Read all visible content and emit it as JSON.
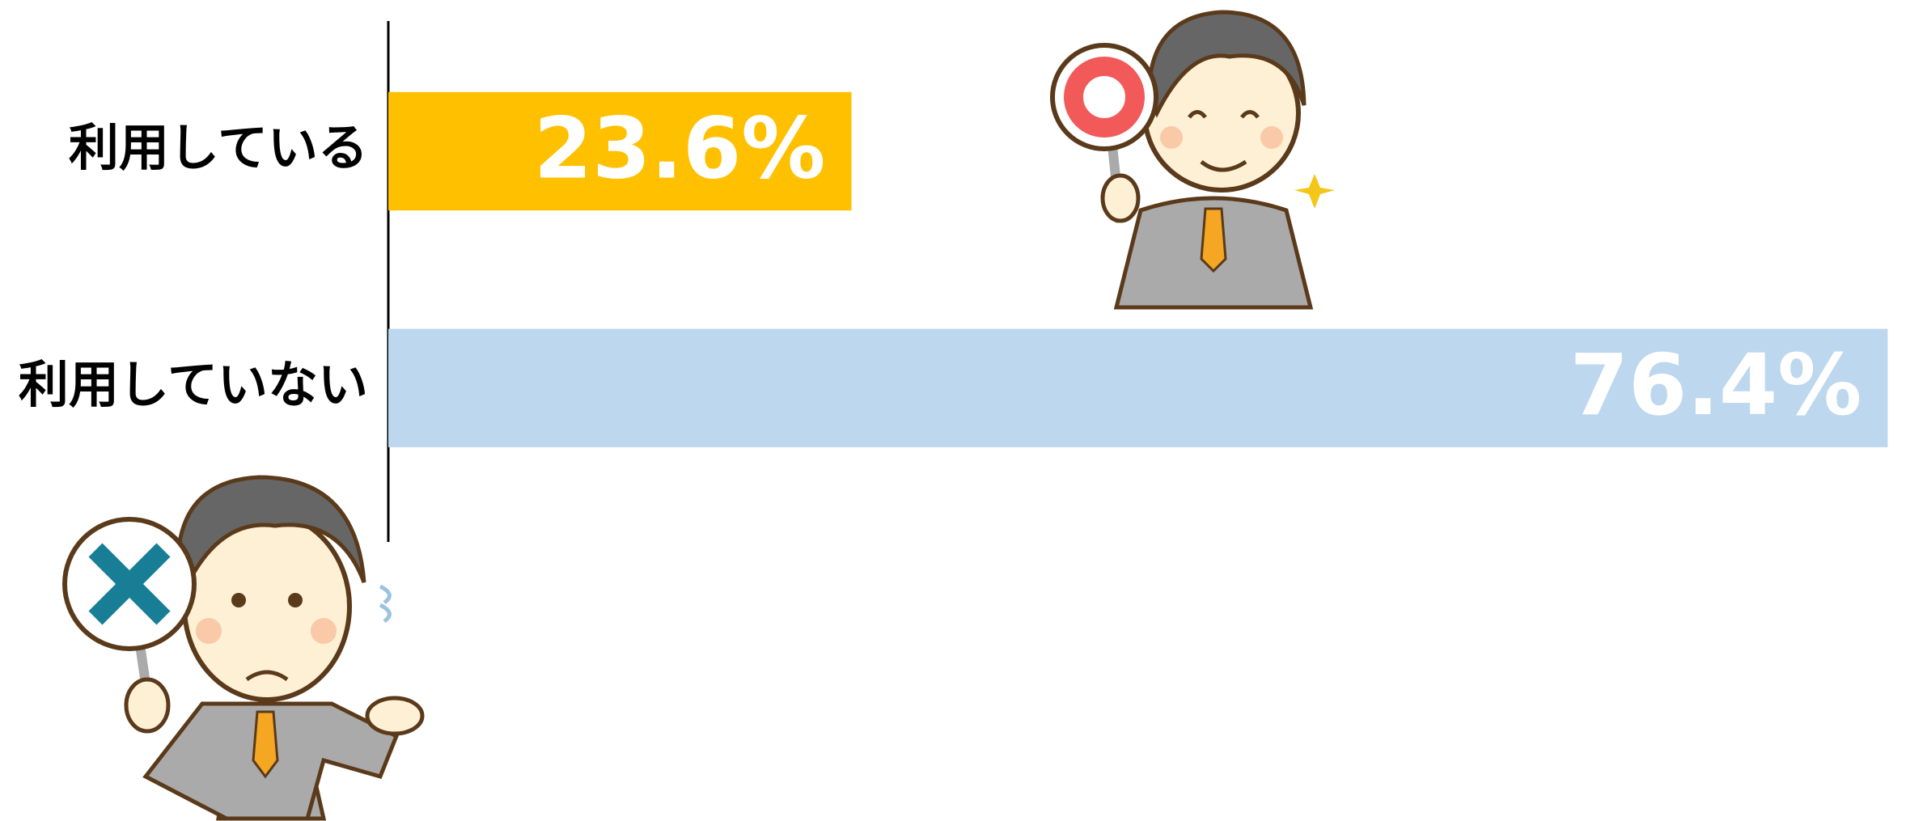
{
  "chart_data": {
    "type": "bar",
    "orientation": "horizontal",
    "categories": [
      "利用している",
      "利用していない"
    ],
    "values": [
      23.6,
      76.4
    ],
    "value_labels": [
      "23.6%",
      "76.4%"
    ],
    "colors": [
      "#ffc000",
      "#bdd7ee"
    ],
    "xlim": [
      0,
      77
    ]
  }
}
